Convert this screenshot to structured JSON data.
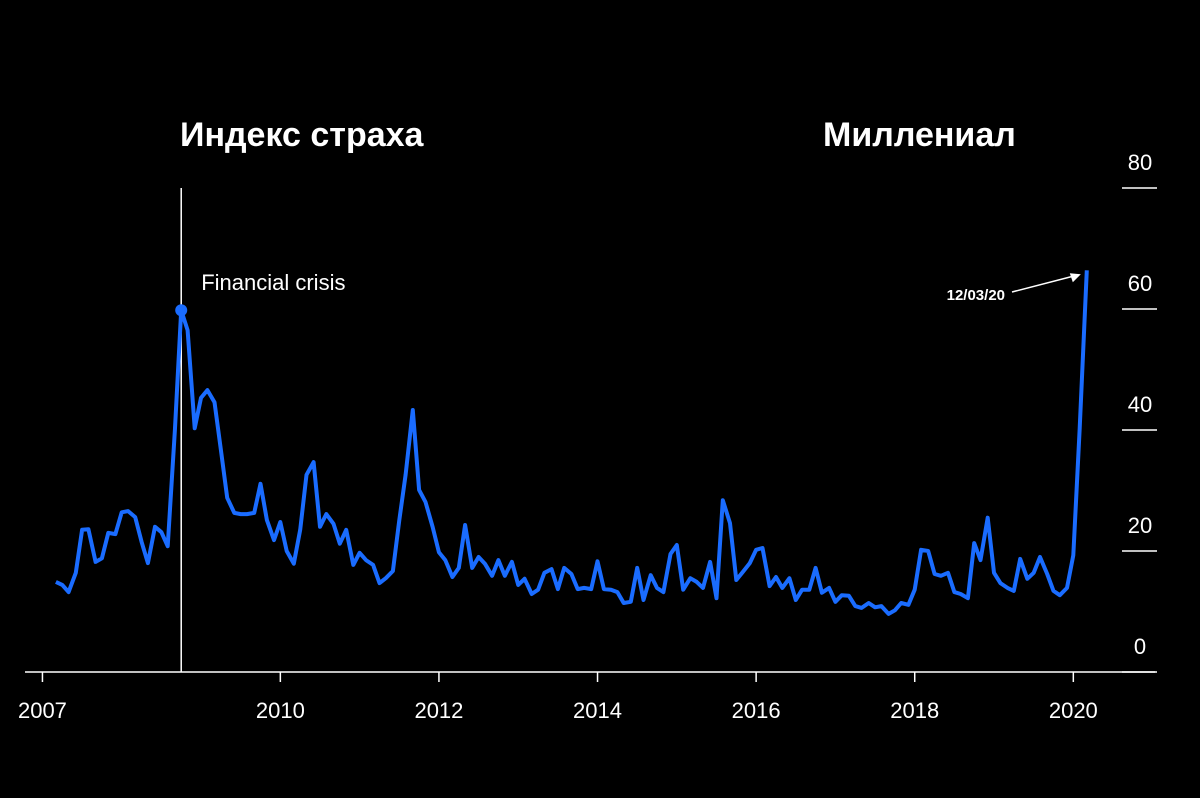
{
  "chart_data": {
    "type": "line",
    "title": "Индекс страха",
    "subtitle": "Миллениал",
    "color": "#1a6cff",
    "x": [
      2007.17,
      2007.25,
      2007.33,
      2007.42,
      2007.5,
      2007.58,
      2007.67,
      2007.75,
      2007.83,
      2007.92,
      2008,
      2008.08,
      2008.17,
      2008.25,
      2008.33,
      2008.42,
      2008.5,
      2008.58,
      2008.67,
      2008.75,
      2008.83,
      2008.92,
      2009,
      2009.08,
      2009.17,
      2009.25,
      2009.33,
      2009.42,
      2009.5,
      2009.58,
      2009.67,
      2009.75,
      2009.83,
      2009.92,
      2010,
      2010.08,
      2010.17,
      2010.25,
      2010.33,
      2010.42,
      2010.5,
      2010.58,
      2010.67,
      2010.75,
      2010.83,
      2010.92,
      2011,
      2011.08,
      2011.17,
      2011.25,
      2011.33,
      2011.42,
      2011.5,
      2011.58,
      2011.67,
      2011.75,
      2011.83,
      2011.92,
      2012,
      2012.08,
      2012.17,
      2012.25,
      2012.33,
      2012.42,
      2012.5,
      2012.58,
      2012.67,
      2012.75,
      2012.83,
      2012.92,
      2013,
      2013.08,
      2013.17,
      2013.25,
      2013.33,
      2013.42,
      2013.5,
      2013.58,
      2013.67,
      2013.75,
      2013.83,
      2013.92,
      2014,
      2014.08,
      2014.17,
      2014.25,
      2014.33,
      2014.42,
      2014.5,
      2014.58,
      2014.67,
      2014.75,
      2014.83,
      2014.92,
      2015,
      2015.08,
      2015.17,
      2015.25,
      2015.33,
      2015.42,
      2015.5,
      2015.58,
      2015.67,
      2015.75,
      2015.83,
      2015.92,
      2016,
      2016.08,
      2016.17,
      2016.25,
      2016.33,
      2016.42,
      2016.5,
      2016.58,
      2016.67,
      2016.75,
      2016.83,
      2016.92,
      2017,
      2017.08,
      2017.17,
      2017.25,
      2017.33,
      2017.42,
      2017.5,
      2017.58,
      2017.67,
      2017.75,
      2017.83,
      2017.92,
      2018,
      2018.08,
      2018.17,
      2018.25,
      2018.33,
      2018.42,
      2018.5,
      2018.58,
      2018.67,
      2018.75,
      2018.83,
      2018.92,
      2019,
      2019.08,
      2019.17,
      2019.25,
      2019.33,
      2019.42,
      2019.5,
      2019.58,
      2019.67,
      2019.75,
      2019.83,
      2019.92,
      2020,
      2020.08,
      2020.17
    ],
    "values": [
      14.9,
      14.4,
      13.2,
      16.4,
      23.5,
      23.6,
      18.2,
      18.8,
      23.0,
      22.8,
      26.4,
      26.6,
      25.6,
      21.5,
      18.0,
      24.0,
      23.1,
      20.8,
      40.0,
      59.8,
      56.5,
      40.3,
      45.3,
      46.6,
      44.6,
      36.7,
      28.8,
      26.3,
      26.1,
      26.1,
      26.3,
      31.1,
      25.1,
      21.8,
      24.8,
      20.0,
      17.9,
      23.5,
      32.6,
      34.7,
      24.0,
      26.1,
      24.5,
      21.2,
      23.5,
      17.7,
      19.7,
      18.5,
      17.7,
      14.7,
      15.5,
      16.7,
      25.1,
      32.6,
      43.3,
      30.1,
      28.1,
      24.0,
      19.8,
      18.5,
      15.7,
      17.2,
      24.3,
      17.2,
      19.0,
      17.9,
      15.9,
      18.5,
      15.9,
      18.2,
      14.4,
      15.4,
      12.9,
      13.6,
      16.4,
      17.0,
      13.7,
      17.2,
      16.2,
      13.7,
      13.9,
      13.7,
      18.3,
      13.7,
      13.6,
      13.2,
      11.4,
      11.6,
      17.2,
      11.9,
      16.0,
      13.9,
      13.2,
      19.5,
      21.0,
      13.6,
      15.5,
      14.9,
      13.9,
      18.2,
      12.2,
      28.4,
      24.6,
      15.2,
      16.5,
      18.0,
      20.2,
      20.5,
      14.2,
      15.7,
      13.9,
      15.5,
      11.9,
      13.6,
      13.6,
      17.2,
      13.1,
      13.9,
      11.6,
      12.7,
      12.6,
      10.9,
      10.6,
      11.4,
      10.7,
      10.9,
      9.6,
      10.2,
      11.4,
      11.1,
      13.6,
      20.2,
      20.0,
      16.2,
      15.9,
      16.4,
      13.2,
      12.9,
      12.2,
      21.3,
      18.5,
      25.5,
      16.4,
      14.7,
      13.9,
      13.4,
      18.7,
      15.4,
      16.4,
      19.0,
      16.2,
      13.4,
      12.7,
      13.9,
      19.3,
      40.3,
      66.4
    ],
    "xlim": [
      2006.78,
      2021.03
    ],
    "xticks": [
      2007,
      2010,
      2012,
      2014,
      2016,
      2018,
      2020
    ],
    "ylim": [
      0,
      80
    ],
    "yticks": [
      0,
      20,
      40,
      60,
      80
    ],
    "annotations": [
      {
        "text": "Financial crisis",
        "x": 2008.75
      },
      {
        "text": "12/03/20",
        "x": 2020.17
      }
    ]
  }
}
